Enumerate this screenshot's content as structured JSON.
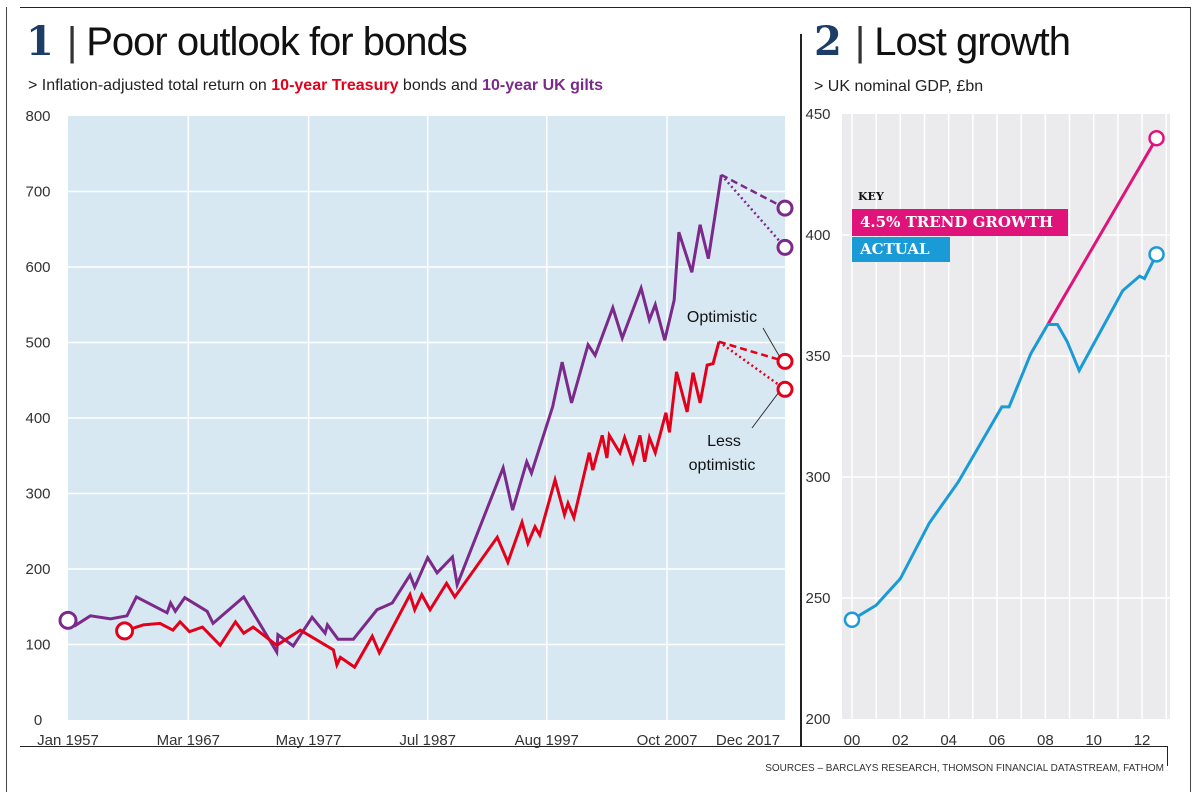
{
  "left_panel": {
    "number": "1",
    "title": "Poor outlook for bonds",
    "subtitle_prefix": "> Inflation-adjusted total return on ",
    "subtitle_series1": "10-year Treasury",
    "subtitle_mid": " bonds and ",
    "subtitle_series2": "10-year UK gilts"
  },
  "right_panel": {
    "number": "2",
    "title": "Lost growth",
    "subtitle": "> UK nominal GDP, £bn"
  },
  "sources": "SOURCES – BARCLAYS RESEARCH, THOMSON FINANCIAL DATASTREAM, FATHOM",
  "chart_data": [
    {
      "type": "line",
      "title": "Poor outlook for bonds",
      "xlabel": "",
      "ylabel": "",
      "xlim": [
        1957,
        2017.8
      ],
      "ylim": [
        0,
        800
      ],
      "yticks": [
        0,
        100,
        200,
        300,
        400,
        500,
        600,
        700,
        800
      ],
      "xtick_labels": [
        {
          "x": 1957.0,
          "label": "Jan 1957"
        },
        {
          "x": 1967.2,
          "label": "Mar 1967"
        },
        {
          "x": 1977.4,
          "label": "May 1977"
        },
        {
          "x": 1987.5,
          "label": "Jul 1987"
        },
        {
          "x": 1997.6,
          "label": "Aug 1997"
        },
        {
          "x": 2007.8,
          "label": "Oct 2007"
        },
        {
          "x": 2017.9,
          "label": "Dec 2017"
        }
      ],
      "grid": true,
      "background": "#d8e8f3",
      "series": [
        {
          "name": "10-year UK gilts",
          "color": "#7b2a8a",
          "x": [
            1957.0,
            1957.6,
            1958.9,
            1960.6,
            1962.0,
            1962.8,
            1965.4,
            1965.7,
            1966.1,
            1966.9,
            1968.8,
            1969.3,
            1971.9,
            1974.7,
            1974.8,
            1976.1,
            1977.7,
            1978.8,
            1979.0,
            1979.9,
            1981.2,
            1983.2,
            1984.5,
            1986.0,
            1986.4,
            1987.5,
            1988.3,
            1989.6,
            1990.0,
            1993.9,
            1994.7,
            1995.9,
            1996.3,
            1998.1,
            1998.9,
            1999.7,
            2001.1,
            2001.7,
            2003.2,
            2004.0,
            2005.6,
            2006.3,
            2006.8,
            2007.6,
            2008.4,
            2008.8,
            2009.9,
            2010.6,
            2011.3,
            2012.4
          ],
          "y": [
            132,
            125,
            138,
            134,
            138,
            163,
            142,
            155,
            144,
            162,
            144,
            128,
            163,
            90,
            113,
            98,
            136,
            115,
            126,
            107,
            107,
            146,
            155,
            192,
            176,
            215,
            195,
            216,
            179,
            334,
            278,
            342,
            327,
            415,
            474,
            420,
            497,
            483,
            546,
            506,
            572,
            530,
            550,
            503,
            556,
            646,
            593,
            656,
            611,
            722
          ],
          "projections": [
            {
              "label": "Optimistic",
              "style": "dashed",
              "x": [
                2012.4,
                2017.8
              ],
              "y": [
                722,
                678
              ]
            },
            {
              "label": "Less optimistic",
              "style": "dotted",
              "x": [
                2012.4,
                2017.8
              ],
              "y": [
                722,
                626
              ]
            }
          ]
        },
        {
          "name": "10-year Treasury",
          "color": "#e3001b",
          "x": [
            1961.8,
            1963.4,
            1964.8,
            1965.9,
            1966.5,
            1967.3,
            1968.4,
            1969.9,
            1971.2,
            1971.9,
            1972.7,
            1974.7,
            1976.7,
            1979.5,
            1979.8,
            1980.1,
            1981.3,
            1982.8,
            1983.4,
            1986.0,
            1986.4,
            1987.0,
            1987.7,
            1989.1,
            1989.8,
            1993.4,
            1994.3,
            1995.5,
            1996.0,
            1996.6,
            1997.0,
            1998.3,
            1999.1,
            1999.4,
            1999.9,
            2001.2,
            2001.5,
            2002.3,
            2002.7,
            2002.9,
            2003.8,
            2004.2,
            2004.9,
            2005.5,
            2005.9,
            2006.3,
            2006.8,
            2007.7,
            2008.0,
            2008.6,
            2009.5,
            2010.0,
            2010.6,
            2011.2,
            2011.7,
            2012.2
          ],
          "y": [
            118,
            126,
            128,
            119,
            130,
            117,
            123,
            99,
            130,
            115,
            123,
            99,
            119,
            93,
            73,
            83,
            70,
            111,
            89,
            166,
            146,
            166,
            146,
            181,
            163,
            242,
            209,
            262,
            234,
            256,
            245,
            318,
            272,
            287,
            268,
            354,
            331,
            377,
            347,
            377,
            354,
            374,
            342,
            377,
            342,
            374,
            354,
            407,
            381,
            461,
            408,
            460,
            420,
            470,
            472,
            501
          ],
          "projections": [
            {
              "label": "Optimistic",
              "style": "dashed",
              "x": [
                2012.2,
                2017.8
              ],
              "y": [
                501,
                475
              ]
            },
            {
              "label": "Less optimistic",
              "style": "dotted",
              "x": [
                2012.2,
                2017.8
              ],
              "y": [
                501,
                438
              ]
            }
          ]
        }
      ],
      "annotations": [
        {
          "text": "Optimistic"
        },
        {
          "text_line1": "Less",
          "text_line2": "optimistic"
        }
      ]
    },
    {
      "type": "line",
      "title": "Lost growth",
      "xlabel": "",
      "ylabel": "UK nominal GDP, £bn",
      "xlim": [
        1999.6,
        2013.2
      ],
      "ylim": [
        200,
        450
      ],
      "yticks": [
        200,
        250,
        300,
        350,
        400,
        450
      ],
      "xtick_labels": [
        {
          "x": 2000,
          "label": "00"
        },
        {
          "x": 2002,
          "label": "02"
        },
        {
          "x": 2004,
          "label": "04"
        },
        {
          "x": 2006,
          "label": "06"
        },
        {
          "x": 2008,
          "label": "08"
        },
        {
          "x": 2010,
          "label": "10"
        },
        {
          "x": 2012,
          "label": "12"
        }
      ],
      "grid": true,
      "background": "#ebebed",
      "legend": {
        "title": "KEY",
        "placement": "top-left"
      },
      "series": [
        {
          "name": "4.5% TREND GROWTH",
          "color": "#e0137a",
          "x": [
            2008.1,
            2012.6
          ],
          "y": [
            363,
            440
          ]
        },
        {
          "name": "ACTUAL",
          "color": "#1a9ad6",
          "x": [
            2000.0,
            2001.0,
            2002.0,
            2003.2,
            2004.4,
            2006.2,
            2006.5,
            2007.4,
            2008.1,
            2008.5,
            2008.9,
            2009.4,
            2011.2,
            2011.9,
            2012.1,
            2012.6
          ],
          "y": [
            241,
            247,
            258,
            281,
            298,
            329,
            329,
            351,
            363,
            363,
            356,
            344,
            377,
            383,
            382,
            392
          ]
        }
      ]
    }
  ]
}
